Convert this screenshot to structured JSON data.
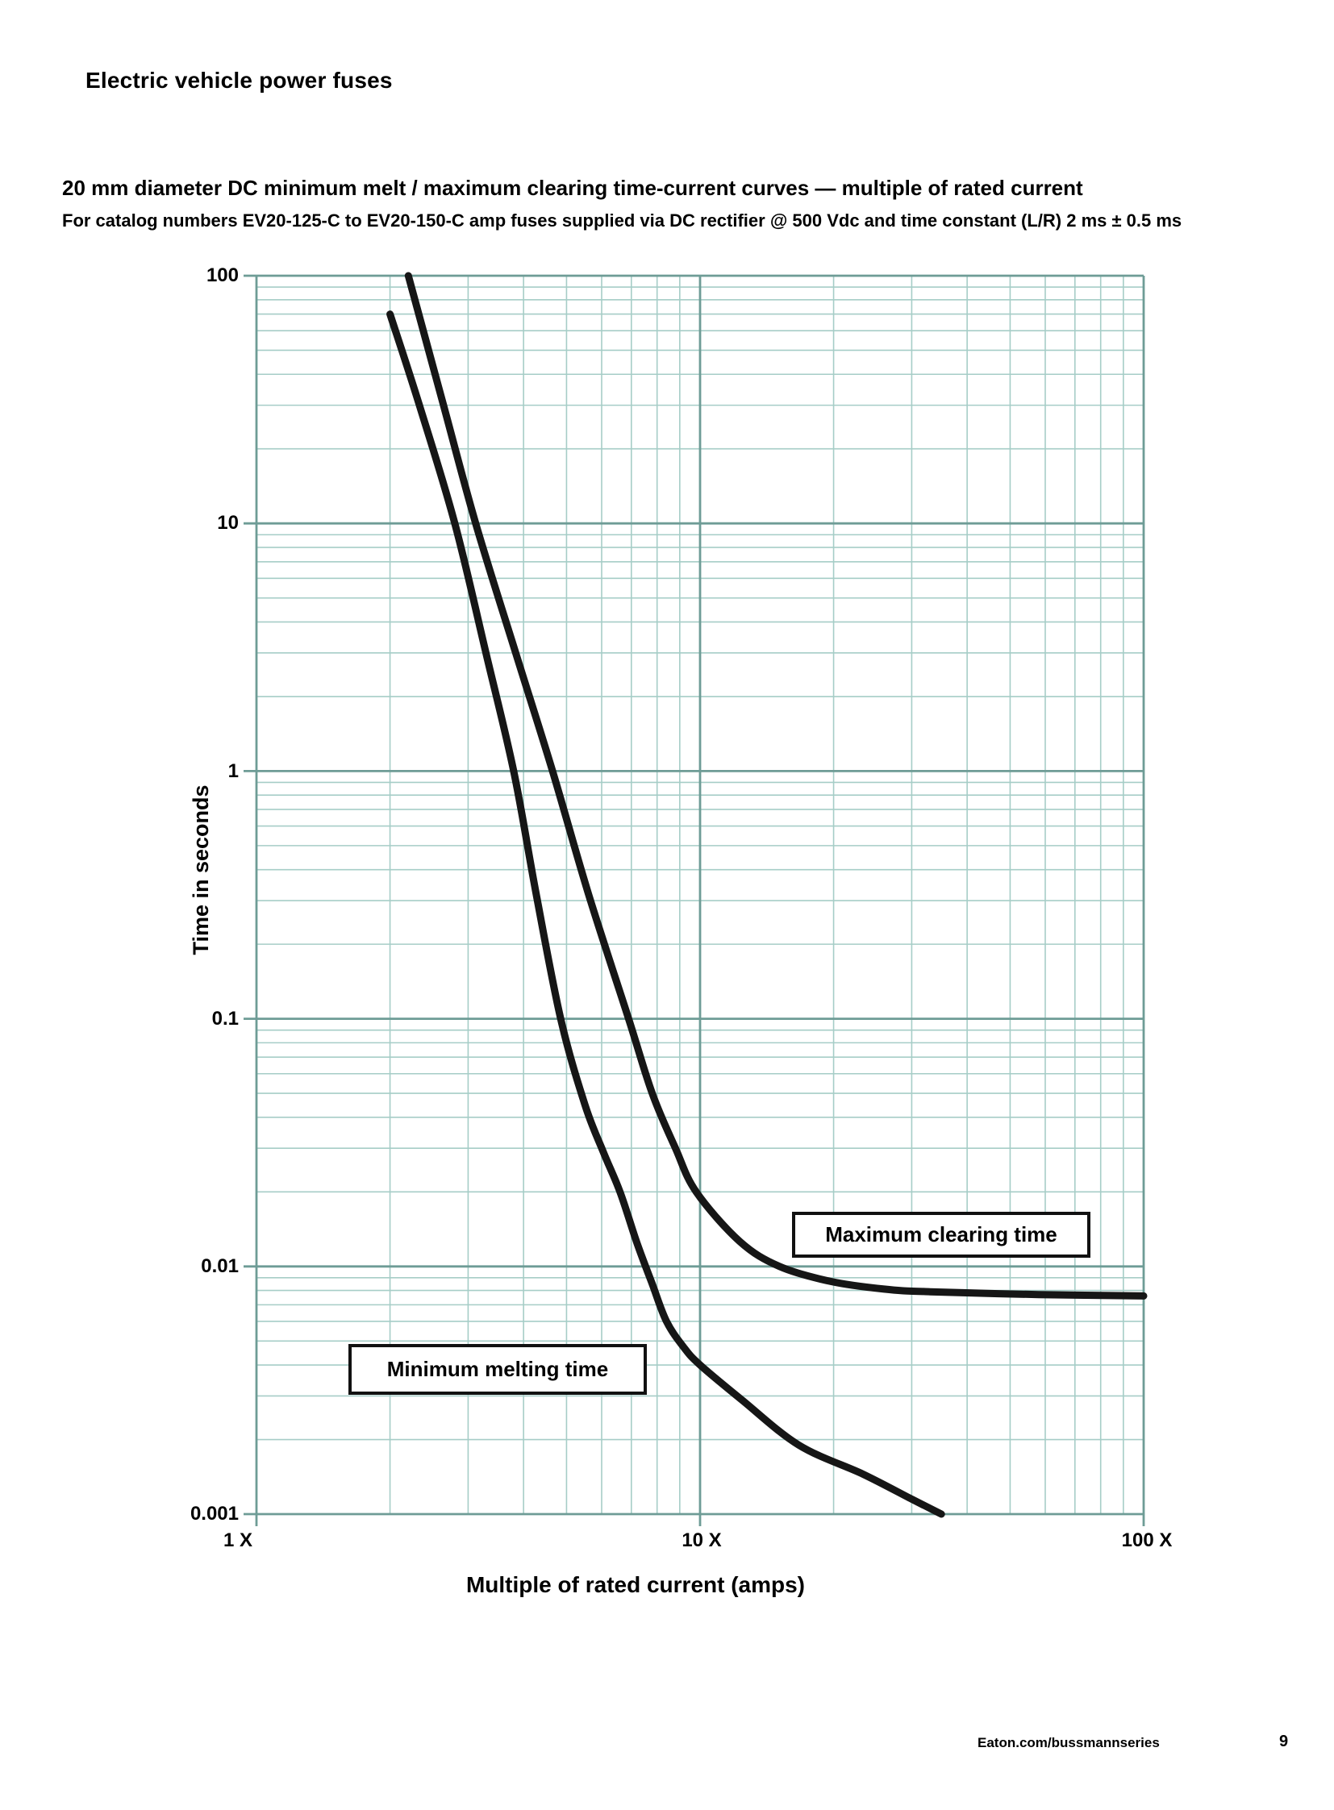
{
  "page": {
    "header": "Electric vehicle power fuses",
    "footer": {
      "url": "Eaton.com/bussmannseries",
      "page_number": "9"
    }
  },
  "section": {
    "title": "20 mm diameter DC minimum melt / maximum clearing time-current curves — multiple of rated current",
    "subtitle": "For catalog numbers EV20-125-C to EV20-150-C amp fuses supplied via DC rectifier @ 500 Vdc and time constant (L/R) 2 ms ± 0.5 ms"
  },
  "chart_data": {
    "type": "line",
    "title": "",
    "xlabel": "Multiple of rated current (amps)",
    "ylabel": "Time in seconds",
    "xscale": "log",
    "yscale": "log",
    "xlim": [
      1,
      100
    ],
    "ylim": [
      0.001,
      100
    ],
    "xtick_labels": [
      "1 X",
      "10 X",
      "100 X"
    ],
    "ytick_labels": [
      "100",
      "10",
      "1",
      "0.1",
      "0.01",
      "0.001"
    ],
    "legend_position": "labels-in-boxes-on-plot",
    "grid": {
      "minor": true,
      "major": true,
      "color_minor": "#a6cdc7",
      "color_major": "#6e9c96"
    },
    "curve_color": "#161616",
    "curve_stroke_px": 9,
    "series": [
      {
        "name": "Maximum clearing time",
        "points": [
          [
            2.2,
            100
          ],
          [
            2.64,
            30
          ],
          [
            3.12,
            10
          ],
          [
            3.84,
            3.0
          ],
          [
            4.65,
            1.0
          ],
          [
            5.6,
            0.32
          ],
          [
            6.9,
            0.1
          ],
          [
            7.8,
            0.05
          ],
          [
            8.8,
            0.03
          ],
          [
            9.8,
            0.02
          ],
          [
            12.3,
            0.0126
          ],
          [
            15.1,
            0.01
          ],
          [
            19.7,
            0.0087
          ],
          [
            26,
            0.0081
          ],
          [
            33,
            0.0079
          ],
          [
            58,
            0.0077
          ],
          [
            100,
            0.0076
          ]
        ]
      },
      {
        "name": "Minimum melting time",
        "points": [
          [
            2.0,
            70
          ],
          [
            2.33,
            30
          ],
          [
            2.8,
            10
          ],
          [
            3.29,
            3.0
          ],
          [
            3.8,
            1.0
          ],
          [
            4.27,
            0.32
          ],
          [
            4.85,
            0.1
          ],
          [
            5.5,
            0.045
          ],
          [
            6.05,
            0.029
          ],
          [
            6.6,
            0.02
          ],
          [
            7.2,
            0.0125
          ],
          [
            7.8,
            0.0085
          ],
          [
            8.4,
            0.006
          ],
          [
            9.2,
            0.0047
          ],
          [
            10,
            0.004
          ],
          [
            12.4,
            0.0029
          ],
          [
            16.7,
            0.0019
          ],
          [
            23.3,
            0.00145
          ],
          [
            30,
            0.00115
          ],
          [
            35,
            0.001
          ]
        ]
      }
    ]
  }
}
